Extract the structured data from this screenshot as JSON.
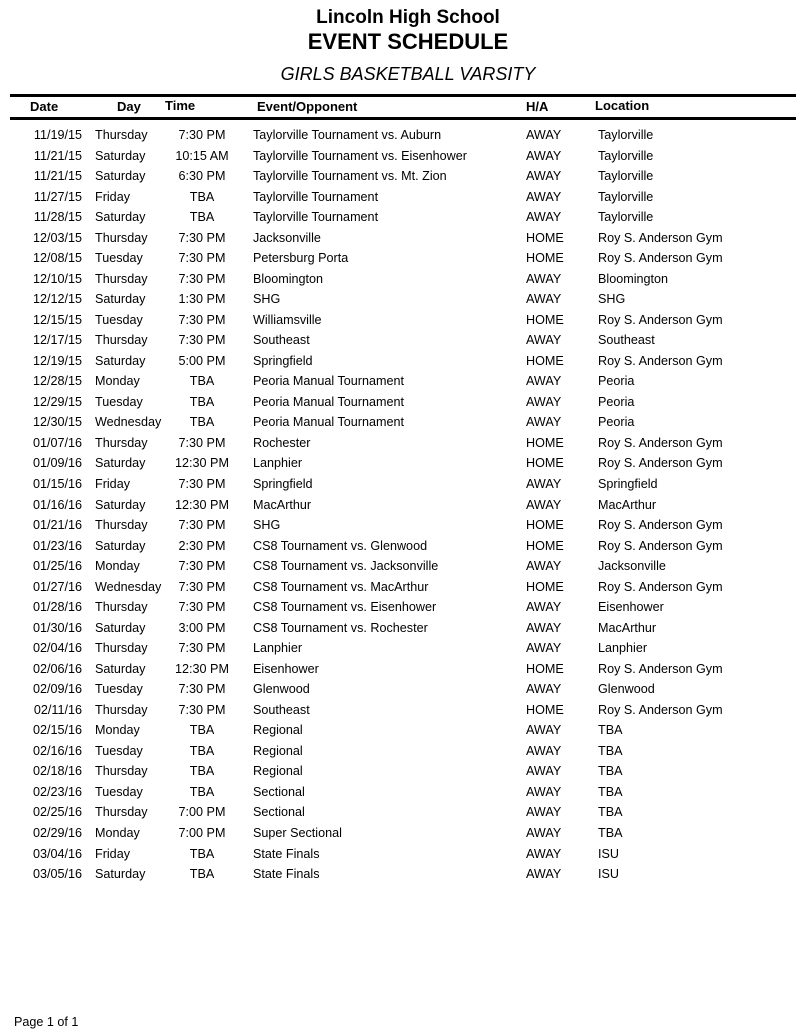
{
  "header": {
    "school": "Lincoln High School",
    "title": "EVENT SCHEDULE",
    "subtitle": "GIRLS BASKETBALL VARSITY"
  },
  "columns": {
    "date": "Date",
    "day": "Day",
    "time": "Time",
    "event": "Event/Opponent",
    "ha": "H/A",
    "location": "Location"
  },
  "rows": [
    [
      "11/19/15",
      "Thursday",
      "7:30 PM",
      "Taylorville Tournament vs. Auburn",
      "AWAY",
      "Taylorville"
    ],
    [
      "11/21/15",
      "Saturday",
      "10:15 AM",
      "Taylorville Tournament  vs. Eisenhower",
      "AWAY",
      "Taylorville"
    ],
    [
      "11/21/15",
      "Saturday",
      "6:30 PM",
      "Taylorville Tournament vs. Mt. Zion",
      "AWAY",
      "Taylorville"
    ],
    [
      "11/27/15",
      "Friday",
      "TBA",
      "Taylorville Tournament",
      "AWAY",
      "Taylorville"
    ],
    [
      "11/28/15",
      "Saturday",
      "TBA",
      "Taylorville Tournament",
      "AWAY",
      "Taylorville"
    ],
    [
      "12/03/15",
      "Thursday",
      "7:30 PM",
      "Jacksonville",
      "HOME",
      "Roy S. Anderson Gym"
    ],
    [
      "12/08/15",
      "Tuesday",
      "7:30 PM",
      "Petersburg Porta",
      "HOME",
      "Roy S. Anderson Gym"
    ],
    [
      "12/10/15",
      "Thursday",
      "7:30 PM",
      "Bloomington",
      "AWAY",
      "Bloomington"
    ],
    [
      "12/12/15",
      "Saturday",
      "1:30 PM",
      "SHG",
      "AWAY",
      "SHG"
    ],
    [
      "12/15/15",
      "Tuesday",
      "7:30 PM",
      "Williamsville",
      "HOME",
      "Roy S. Anderson Gym"
    ],
    [
      "12/17/15",
      "Thursday",
      "7:30 PM",
      "Southeast",
      "AWAY",
      "Southeast"
    ],
    [
      "12/19/15",
      "Saturday",
      "5:00 PM",
      "Springfield",
      "HOME",
      "Roy S. Anderson Gym"
    ],
    [
      "12/28/15",
      "Monday",
      "TBA",
      "Peoria Manual Tournament",
      "AWAY",
      "Peoria"
    ],
    [
      "12/29/15",
      "Tuesday",
      "TBA",
      "Peoria Manual Tournament",
      "AWAY",
      "Peoria"
    ],
    [
      "12/30/15",
      "Wednesday",
      "TBA",
      "Peoria Manual Tournament",
      "AWAY",
      "Peoria"
    ],
    [
      "01/07/16",
      "Thursday",
      "7:30 PM",
      "Rochester",
      "HOME",
      "Roy S. Anderson Gym"
    ],
    [
      "01/09/16",
      "Saturday",
      "12:30 PM",
      "Lanphier",
      "HOME",
      "Roy S. Anderson Gym"
    ],
    [
      "01/15/16",
      "Friday",
      "7:30 PM",
      "Springfield",
      "AWAY",
      "Springfield"
    ],
    [
      "01/16/16",
      "Saturday",
      "12:30 PM",
      "MacArthur",
      "AWAY",
      "MacArthur"
    ],
    [
      "01/21/16",
      "Thursday",
      "7:30 PM",
      "SHG",
      "HOME",
      "Roy S. Anderson Gym"
    ],
    [
      "01/23/16",
      "Saturday",
      "2:30 PM",
      "CS8 Tournament vs. Glenwood",
      "HOME",
      "Roy S. Anderson Gym"
    ],
    [
      "01/25/16",
      "Monday",
      "7:30 PM",
      "CS8 Tournament vs. Jacksonville",
      "AWAY",
      "Jacksonville"
    ],
    [
      "01/27/16",
      "Wednesday",
      "7:30 PM",
      "CS8 Tournament vs. MacArthur",
      "HOME",
      "Roy S. Anderson Gym"
    ],
    [
      "01/28/16",
      "Thursday",
      "7:30 PM",
      "CS8 Tournament vs. Eisenhower",
      "AWAY",
      "Eisenhower"
    ],
    [
      "01/30/16",
      "Saturday",
      "3:00 PM",
      "CS8 Tournament vs. Rochester",
      "AWAY",
      "MacArthur"
    ],
    [
      "02/04/16",
      "Thursday",
      "7:30 PM",
      "Lanphier",
      "AWAY",
      "Lanphier"
    ],
    [
      "02/06/16",
      "Saturday",
      "12:30 PM",
      "Eisenhower",
      "HOME",
      "Roy S. Anderson Gym"
    ],
    [
      "02/09/16",
      "Tuesday",
      "7:30 PM",
      "Glenwood",
      "AWAY",
      "Glenwood"
    ],
    [
      "02/11/16",
      "Thursday",
      "7:30 PM",
      "Southeast",
      "HOME",
      "Roy S. Anderson Gym"
    ],
    [
      "02/15/16",
      "Monday",
      "TBA",
      "Regional",
      "AWAY",
      "TBA"
    ],
    [
      "02/16/16",
      "Tuesday",
      "TBA",
      "Regional",
      "AWAY",
      "TBA"
    ],
    [
      "02/18/16",
      "Thursday",
      "TBA",
      "Regional",
      "AWAY",
      "TBA"
    ],
    [
      "02/23/16",
      "Tuesday",
      "TBA",
      "Sectional",
      "AWAY",
      "TBA"
    ],
    [
      "02/25/16",
      "Thursday",
      "7:00 PM",
      "Sectional",
      "AWAY",
      "TBA"
    ],
    [
      "02/29/16",
      "Monday",
      "7:00 PM",
      "Super Sectional",
      "AWAY",
      "TBA"
    ],
    [
      "03/04/16",
      "Friday",
      "TBA",
      "State Finals",
      "AWAY",
      "ISU"
    ],
    [
      "03/05/16",
      "Saturday",
      "TBA",
      "State Finals",
      "AWAY",
      "ISU"
    ]
  ],
  "footer": {
    "page": "Page 1 of 1"
  }
}
